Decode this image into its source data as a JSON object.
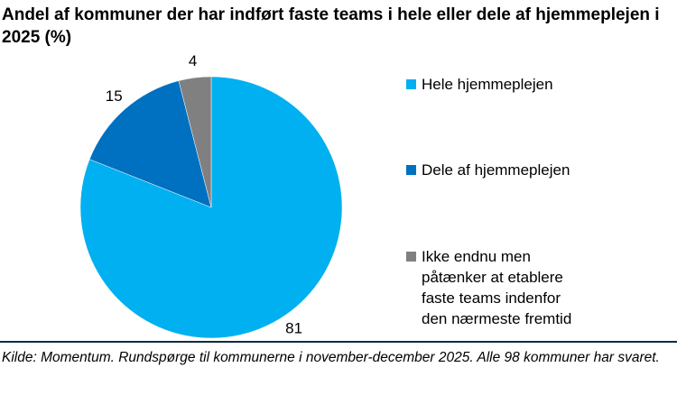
{
  "chart_data": {
    "type": "pie",
    "title": "Andel af kommuner der har indført faste teams i hele eller dele af hjemmeplejen i 2025 (%)",
    "categories": [
      "Hele hjemmeplejen",
      "Dele af hjemmeplejen",
      "Ikke endnu men påtænker at etablere faste teams indenfor den nærmeste fremtid"
    ],
    "values": [
      81,
      15,
      4
    ],
    "colors": [
      "#00b0f0",
      "#0070c0",
      "#808080"
    ],
    "legend": "right",
    "source": "Kilde: Momentum. Rundspørge til kommunerne i november-december 2025. Alle 98 kommuner har svaret."
  }
}
